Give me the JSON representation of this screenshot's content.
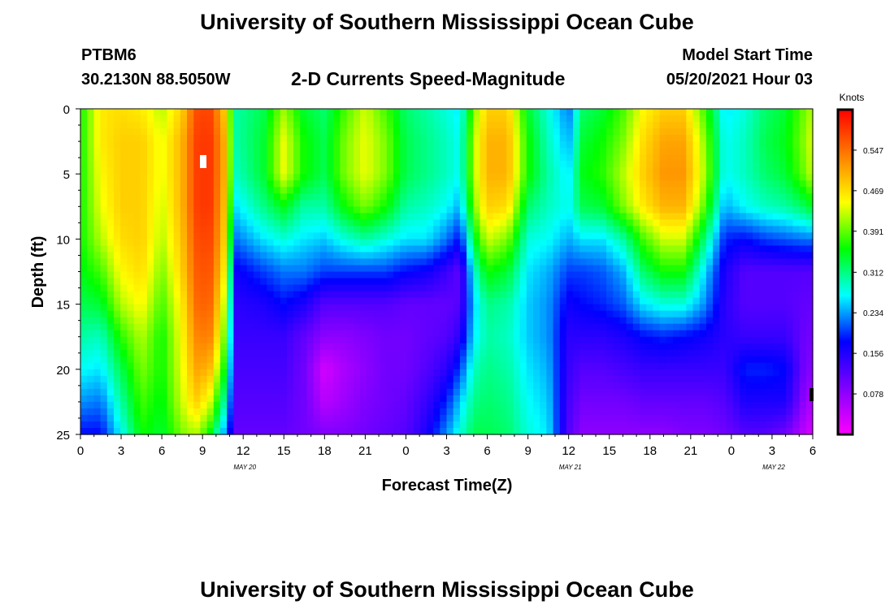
{
  "header": {
    "title": "University of Southern Mississippi Ocean Cube",
    "station": "PTBM6",
    "coords": "30.2130N  88.5050W",
    "subtitle": "2-D Currents Speed-Magnitude",
    "model_label": "Model Start Time",
    "model_time": "05/20/2021 Hour 03"
  },
  "footer": {
    "title": "University of Southern Mississippi Ocean Cube"
  },
  "chart_data": {
    "type": "heatmap",
    "title": "2-D Currents Speed-Magnitude",
    "xlabel": "Forecast Time(Z)",
    "ylabel": "Depth (ft)",
    "x_tick_labels": [
      "0",
      "3",
      "6",
      "9",
      "12",
      "15",
      "18",
      "21",
      "0",
      "3",
      "6",
      "9",
      "12",
      "15",
      "18",
      "21",
      "0",
      "3",
      "6"
    ],
    "x_range_hours": [
      0,
      54
    ],
    "date_labels": [
      {
        "label": "MAY 20",
        "hour": 12
      },
      {
        "label": "MAY 21",
        "hour": 36
      },
      {
        "label": "MAY 22",
        "hour": 51
      }
    ],
    "y_ticks": [
      0,
      5,
      10,
      15,
      20,
      25
    ],
    "y_range": [
      0,
      25
    ],
    "y_inverted": true,
    "colorbar": {
      "title": "Knots",
      "tick_labels": [
        "0.547",
        "0.469",
        "0.391",
        "0.312",
        "0.234",
        "0.156",
        "0.078"
      ],
      "tick_values": [
        0.547,
        0.469,
        0.391,
        0.312,
        0.234,
        0.156,
        0.078
      ],
      "range": [
        0,
        0.625
      ],
      "colors": [
        "#ff00ff",
        "#8000ff",
        "#0000ff",
        "#00ffff",
        "#00ff00",
        "#ffff00",
        "#ff8000",
        "#ff0000"
      ]
    },
    "grid": "cells",
    "depth_levels": [
      0,
      2.5,
      5,
      7.5,
      10,
      12.5,
      15,
      17.5,
      20,
      22.5,
      25
    ],
    "hours": [
      0,
      1.5,
      3,
      4.5,
      6,
      7.5,
      8.5,
      9.5,
      10.5,
      11.5,
      13.5,
      15,
      16.5,
      18,
      19.5,
      21,
      22.5,
      24,
      25.5,
      27,
      28,
      29,
      30,
      31.5,
      33,
      34.5,
      36,
      37,
      38.5,
      40,
      41.5,
      43,
      44.5,
      46,
      47.5,
      49,
      50.5,
      52,
      53.5,
      54
    ],
    "speed_knots": [
      [
        0.36,
        0.36,
        0.36,
        0.36,
        0.36,
        0.35,
        0.33,
        0.3,
        0.27,
        0.23,
        0.18
      ],
      [
        0.46,
        0.46,
        0.45,
        0.44,
        0.42,
        0.38,
        0.34,
        0.29,
        0.26,
        0.22,
        0.18
      ],
      [
        0.47,
        0.48,
        0.48,
        0.48,
        0.47,
        0.45,
        0.42,
        0.37,
        0.33,
        0.3,
        0.27
      ],
      [
        0.46,
        0.48,
        0.48,
        0.48,
        0.48,
        0.47,
        0.45,
        0.42,
        0.4,
        0.38,
        0.36
      ],
      [
        0.42,
        0.44,
        0.44,
        0.43,
        0.42,
        0.4,
        0.38,
        0.36,
        0.36,
        0.35,
        0.34
      ],
      [
        0.48,
        0.5,
        0.5,
        0.5,
        0.49,
        0.48,
        0.46,
        0.45,
        0.44,
        0.43,
        0.4
      ],
      [
        0.57,
        0.58,
        0.58,
        0.58,
        0.57,
        0.56,
        0.55,
        0.53,
        0.51,
        0.48,
        0.42
      ],
      [
        0.58,
        0.59,
        0.59,
        0.59,
        0.58,
        0.57,
        0.56,
        0.54,
        0.5,
        0.44,
        0.36
      ],
      [
        0.5,
        0.52,
        0.52,
        0.51,
        0.5,
        0.48,
        0.45,
        0.42,
        0.38,
        0.32,
        0.25
      ],
      [
        0.3,
        0.3,
        0.29,
        0.26,
        0.22,
        0.17,
        0.15,
        0.14,
        0.13,
        0.12,
        0.11
      ],
      [
        0.33,
        0.34,
        0.34,
        0.31,
        0.26,
        0.2,
        0.16,
        0.14,
        0.13,
        0.12,
        0.11
      ],
      [
        0.41,
        0.44,
        0.44,
        0.35,
        0.28,
        0.22,
        0.18,
        0.14,
        0.13,
        0.12,
        0.11
      ],
      [
        0.34,
        0.36,
        0.36,
        0.3,
        0.26,
        0.22,
        0.16,
        0.11,
        0.1,
        0.1,
        0.1
      ],
      [
        0.32,
        0.33,
        0.33,
        0.3,
        0.25,
        0.2,
        0.12,
        0.08,
        0.03,
        0.05,
        0.09
      ],
      [
        0.38,
        0.4,
        0.4,
        0.36,
        0.28,
        0.2,
        0.12,
        0.08,
        0.06,
        0.07,
        0.09
      ],
      [
        0.43,
        0.44,
        0.44,
        0.4,
        0.3,
        0.2,
        0.12,
        0.09,
        0.08,
        0.09,
        0.1
      ],
      [
        0.38,
        0.4,
        0.4,
        0.36,
        0.28,
        0.2,
        0.12,
        0.1,
        0.1,
        0.1,
        0.11
      ],
      [
        0.32,
        0.33,
        0.33,
        0.3,
        0.26,
        0.18,
        0.11,
        0.1,
        0.1,
        0.11,
        0.12
      ],
      [
        0.3,
        0.31,
        0.31,
        0.29,
        0.26,
        0.17,
        0.11,
        0.11,
        0.12,
        0.14,
        0.16
      ],
      [
        0.28,
        0.29,
        0.29,
        0.27,
        0.22,
        0.14,
        0.11,
        0.12,
        0.15,
        0.19,
        0.23
      ],
      [
        0.26,
        0.27,
        0.27,
        0.24,
        0.18,
        0.11,
        0.12,
        0.15,
        0.2,
        0.25,
        0.28
      ],
      [
        0.4,
        0.42,
        0.42,
        0.4,
        0.34,
        0.28,
        0.25,
        0.26,
        0.29,
        0.31,
        0.33
      ],
      [
        0.48,
        0.5,
        0.5,
        0.48,
        0.43,
        0.36,
        0.31,
        0.3,
        0.31,
        0.32,
        0.33
      ],
      [
        0.48,
        0.5,
        0.5,
        0.47,
        0.4,
        0.34,
        0.3,
        0.29,
        0.3,
        0.31,
        0.32
      ],
      [
        0.34,
        0.36,
        0.36,
        0.32,
        0.28,
        0.26,
        0.25,
        0.25,
        0.26,
        0.27,
        0.28
      ],
      [
        0.28,
        0.29,
        0.3,
        0.29,
        0.27,
        0.24,
        0.23,
        0.23,
        0.24,
        0.25,
        0.26
      ],
      [
        0.22,
        0.24,
        0.26,
        0.27,
        0.24,
        0.2,
        0.17,
        0.15,
        0.14,
        0.13,
        0.12
      ],
      [
        0.32,
        0.34,
        0.35,
        0.33,
        0.26,
        0.2,
        0.18,
        0.15,
        0.12,
        0.1,
        0.08
      ],
      [
        0.34,
        0.36,
        0.37,
        0.34,
        0.26,
        0.21,
        0.19,
        0.15,
        0.12,
        0.1,
        0.08
      ],
      [
        0.38,
        0.4,
        0.42,
        0.4,
        0.3,
        0.24,
        0.21,
        0.16,
        0.13,
        0.1,
        0.08
      ],
      [
        0.45,
        0.47,
        0.48,
        0.46,
        0.38,
        0.32,
        0.26,
        0.18,
        0.14,
        0.11,
        0.08
      ],
      [
        0.48,
        0.51,
        0.52,
        0.5,
        0.43,
        0.36,
        0.28,
        0.19,
        0.14,
        0.11,
        0.08
      ],
      [
        0.48,
        0.51,
        0.52,
        0.5,
        0.43,
        0.36,
        0.28,
        0.18,
        0.14,
        0.11,
        0.09
      ],
      [
        0.38,
        0.41,
        0.42,
        0.39,
        0.32,
        0.26,
        0.23,
        0.17,
        0.14,
        0.11,
        0.09
      ],
      [
        0.26,
        0.27,
        0.27,
        0.24,
        0.19,
        0.16,
        0.15,
        0.15,
        0.14,
        0.12,
        0.1
      ],
      [
        0.28,
        0.29,
        0.29,
        0.27,
        0.18,
        0.12,
        0.12,
        0.14,
        0.19,
        0.16,
        0.12
      ],
      [
        0.32,
        0.33,
        0.32,
        0.29,
        0.2,
        0.12,
        0.12,
        0.14,
        0.19,
        0.16,
        0.12
      ],
      [
        0.34,
        0.35,
        0.34,
        0.3,
        0.21,
        0.12,
        0.12,
        0.14,
        0.18,
        0.16,
        0.1
      ],
      [
        0.4,
        0.41,
        0.4,
        0.33,
        0.22,
        0.12,
        0.11,
        0.1,
        0.09,
        0.07,
        0.04
      ],
      [
        0.42,
        0.44,
        0.43,
        0.35,
        0.22,
        0.12,
        0.11,
        0.1,
        0.09,
        0.06,
        0.03
      ]
    ]
  }
}
